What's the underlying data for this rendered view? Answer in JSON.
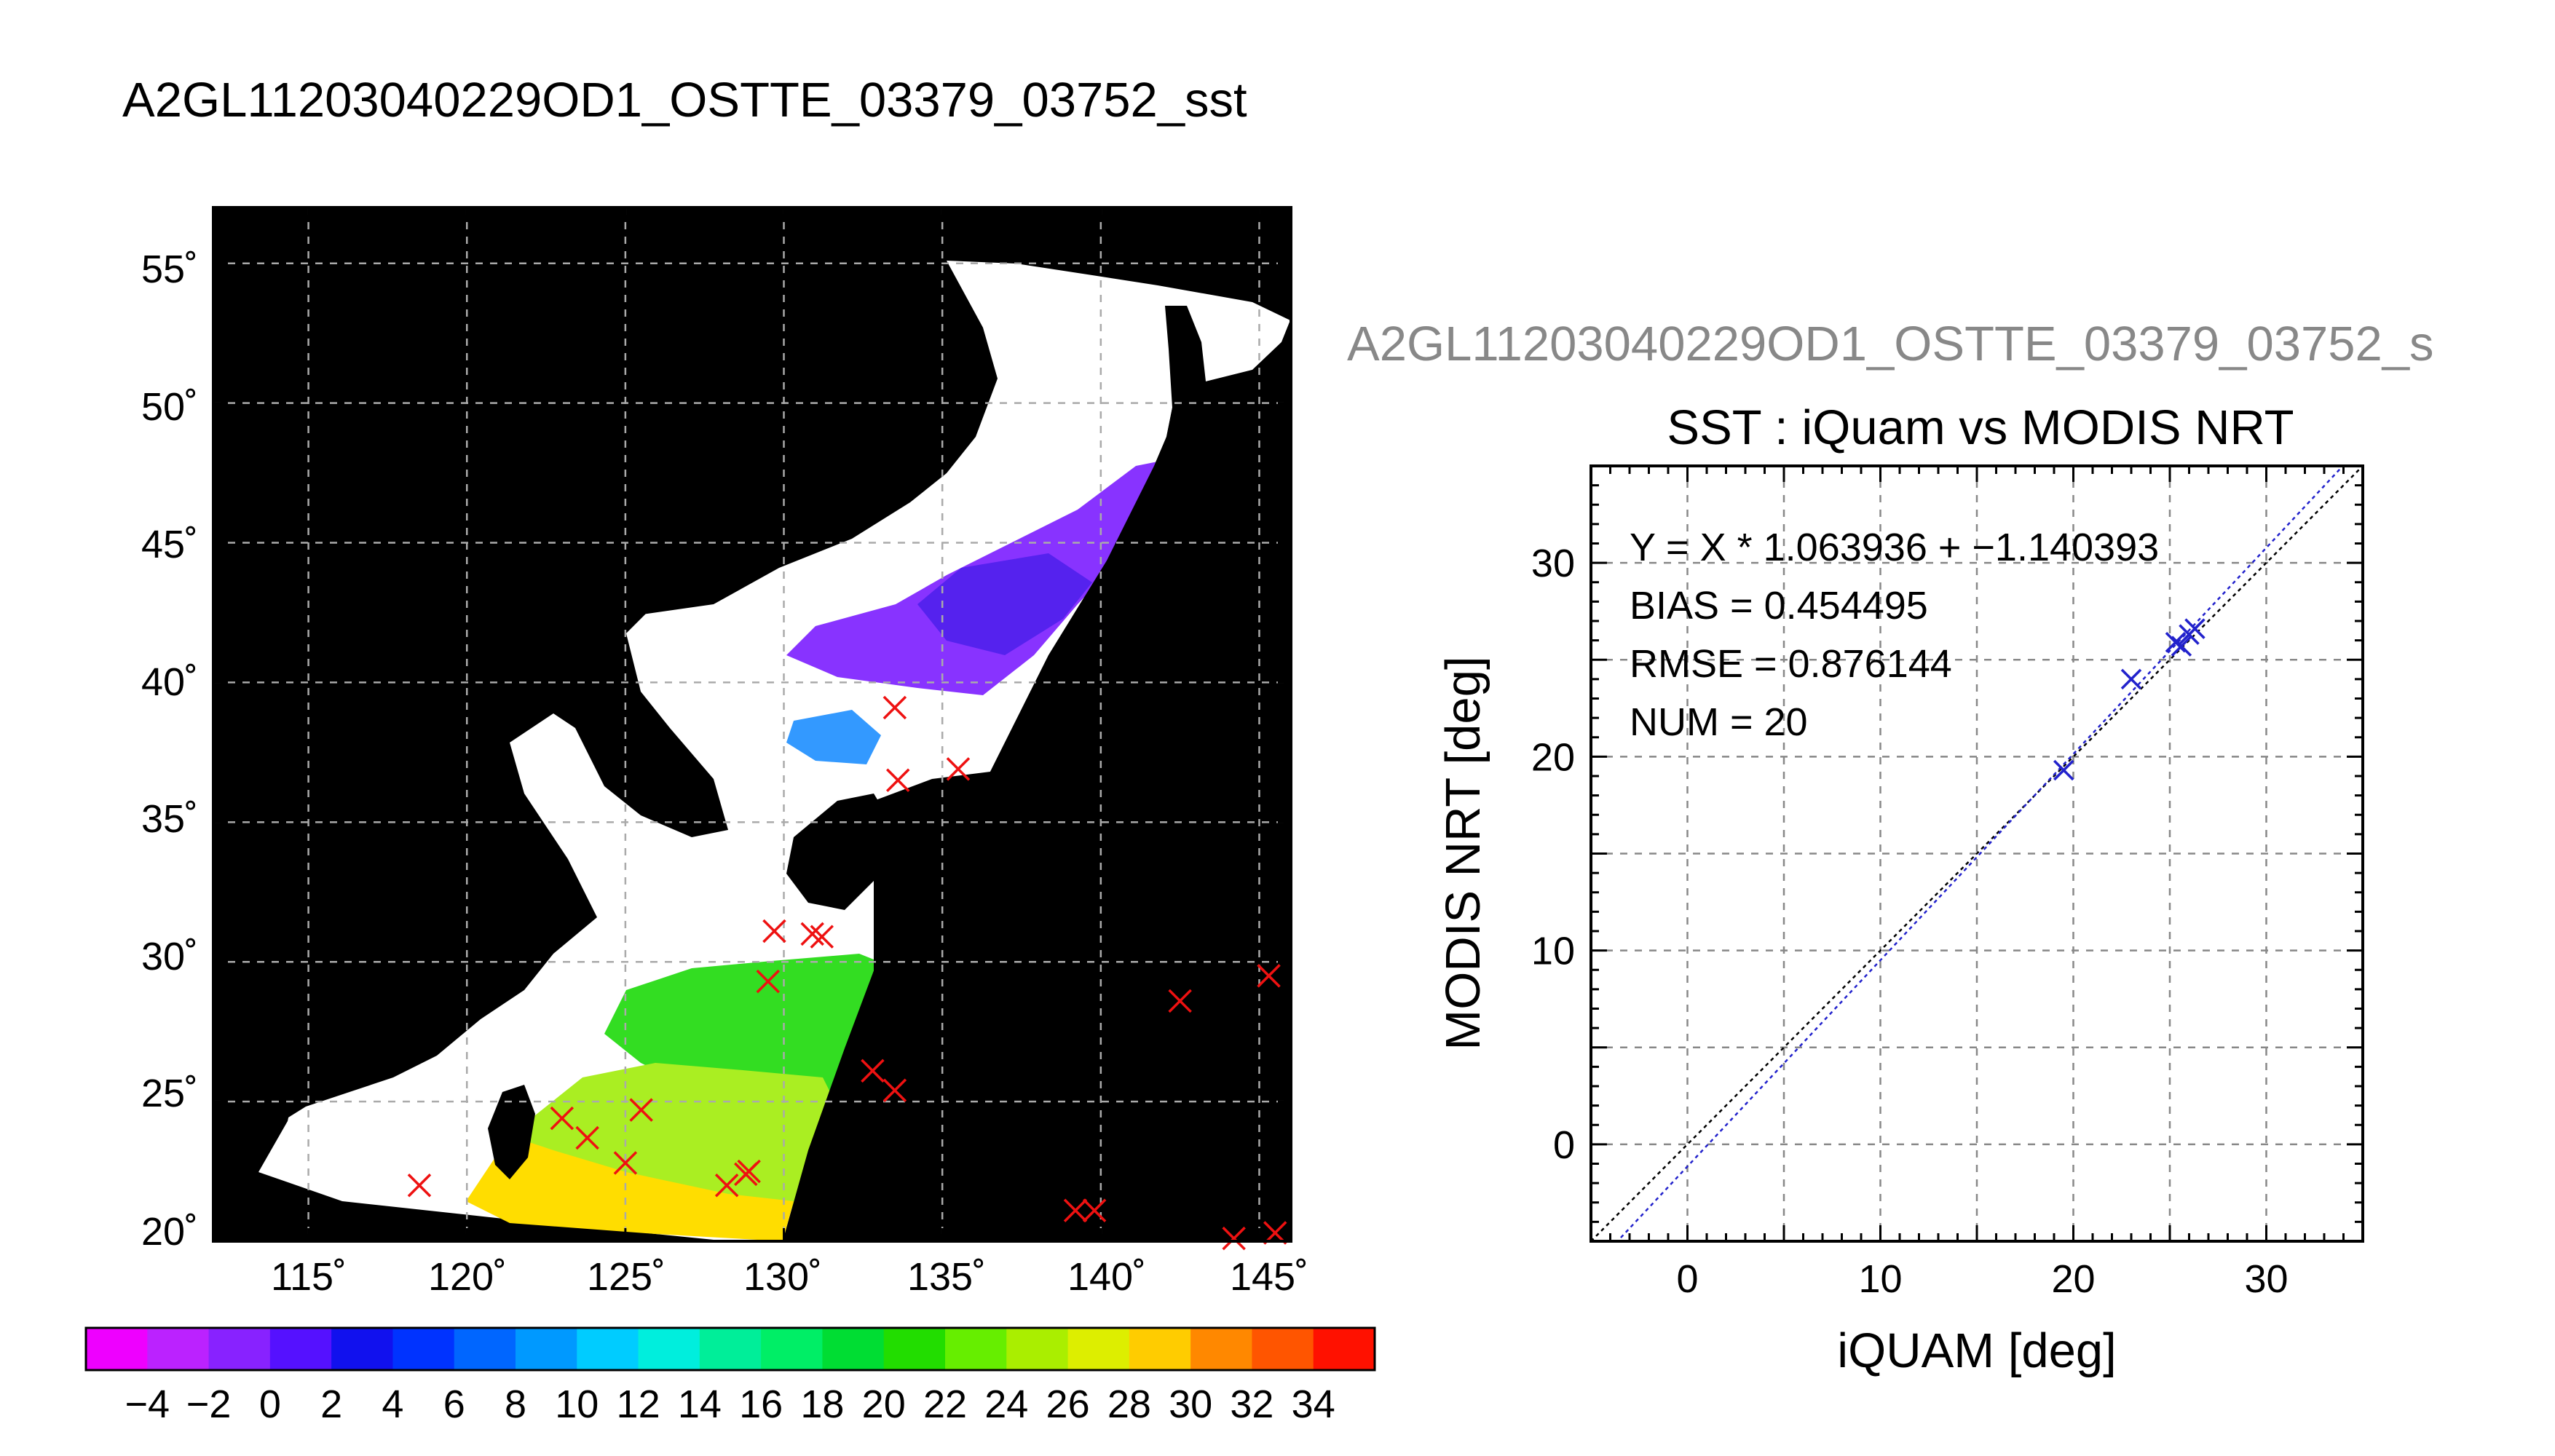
{
  "page_title": "A2GL11203040229OD1_OSTTE_03379_03752_sst",
  "panel_title": "A2GL11203040229OD1_OSTTE_03379_03752_s",
  "map": {
    "lat_ticks": [
      "55˚",
      "50˚",
      "45˚",
      "40˚",
      "35˚",
      "30˚",
      "25˚",
      "20˚"
    ],
    "lon_ticks": [
      "115˚",
      "120˚",
      "125˚",
      "130˚",
      "135˚",
      "140˚",
      "145˚"
    ]
  },
  "colorbar": {
    "labels": [
      "−4",
      "−2",
      "0",
      "2",
      "4",
      "6",
      "8",
      "10",
      "12",
      "14",
      "16",
      "18",
      "20",
      "22",
      "24",
      "26",
      "28",
      "30",
      "32",
      "34"
    ]
  },
  "stats": {
    "equation": "Y = X * 1.063936 + −1.140393",
    "bias": "BIAS = 0.454495",
    "rmse": "RMSE = 0.876144",
    "num": "NUM = 20"
  },
  "chart_data": [
    {
      "type": "map",
      "title": "A2GL11203040229OD1_OSTTE_03379_03752_sst",
      "lon_range": [
        112,
        146
      ],
      "lat_range": [
        20,
        57
      ],
      "grid": true,
      "colorbar": {
        "min": -5,
        "max": 35,
        "step": 2,
        "unit": "sst"
      },
      "matched_points": [
        {
          "lon": 133.5,
          "lat": 39.1
        },
        {
          "lon": 133.6,
          "lat": 36.5
        },
        {
          "lon": 135.5,
          "lat": 36.9
        },
        {
          "lon": 129.7,
          "lat": 31.1
        },
        {
          "lon": 130.9,
          "lat": 31.0
        },
        {
          "lon": 131.2,
          "lat": 30.9
        },
        {
          "lon": 129.5,
          "lat": 29.3
        },
        {
          "lon": 132.8,
          "lat": 26.1
        },
        {
          "lon": 133.5,
          "lat": 25.4
        },
        {
          "lon": 142.5,
          "lat": 28.6
        },
        {
          "lon": 145.3,
          "lat": 29.5
        },
        {
          "lon": 118.5,
          "lat": 22.0
        },
        {
          "lon": 123.0,
          "lat": 24.4
        },
        {
          "lon": 123.8,
          "lat": 23.7
        },
        {
          "lon": 125.5,
          "lat": 24.7
        },
        {
          "lon": 125.0,
          "lat": 22.8
        },
        {
          "lon": 128.2,
          "lat": 22.0
        },
        {
          "lon": 128.8,
          "lat": 22.4
        },
        {
          "lon": 128.9,
          "lat": 22.5
        },
        {
          "lon": 139.2,
          "lat": 21.1
        },
        {
          "lon": 139.8,
          "lat": 21.1
        },
        {
          "lon": 144.2,
          "lat": 20.1
        },
        {
          "lon": 145.5,
          "lat": 20.3
        }
      ],
      "colors": {
        "match_marker": "#ee1111",
        "used_marker": "#2222cc",
        "land": "#000000",
        "no_data": "#ffffff"
      }
    },
    {
      "type": "scatter",
      "title": "SST : iQuam vs MODIS NRT",
      "xlabel": "iQUAM [deg]",
      "ylabel": "MODIS NRT [deg]",
      "xlim": [
        -5,
        35
      ],
      "ylim": [
        -5,
        35
      ],
      "xticks": [
        0,
        10,
        20,
        30
      ],
      "yticks": [
        0,
        10,
        20,
        30
      ],
      "grid": true,
      "points": [
        {
          "x": 19.5,
          "y": 19.3
        },
        {
          "x": 23.0,
          "y": 24.0
        },
        {
          "x": 25.3,
          "y": 25.9
        },
        {
          "x": 25.6,
          "y": 25.7
        },
        {
          "x": 26.0,
          "y": 26.3
        },
        {
          "x": 26.3,
          "y": 26.6
        }
      ],
      "lines": [
        {
          "style": "identity",
          "slope": 1.0,
          "intercept": 0.0,
          "color": "#000000"
        },
        {
          "style": "fit",
          "slope": 1.063936,
          "intercept": -1.140393,
          "color": "#2222cc"
        }
      ],
      "marker_color": "#2222cc"
    }
  ]
}
